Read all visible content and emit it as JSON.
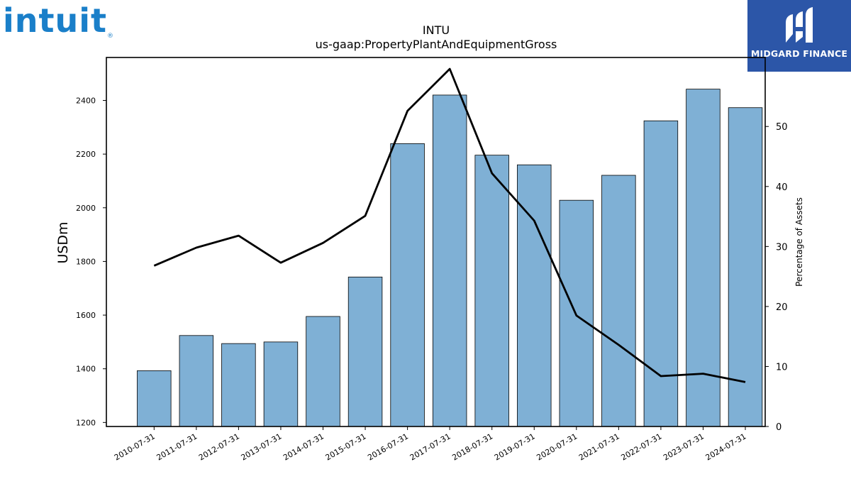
{
  "logos": {
    "left_brand": "intuit",
    "left_brand_color": "#1a7fc9",
    "right_brand": "MIDGARD FINANCE",
    "right_brand_color": "#2c56a8"
  },
  "chart_data": {
    "type": "bar",
    "title": "INTU",
    "subtitle": "us-gaap:PropertyPlantAndEquipmentGross",
    "ylabel": "USDm",
    "y2label": "Percentage of Assets",
    "categories": [
      "2010-07-31",
      "2011-07-31",
      "2012-07-31",
      "2013-07-31",
      "2014-07-31",
      "2015-07-31",
      "2016-07-31",
      "2017-07-31",
      "2018-07-31",
      "2019-07-31",
      "2020-07-31",
      "2021-07-31",
      "2022-07-31",
      "2023-07-31",
      "2024-07-31"
    ],
    "series": [
      {
        "type": "bar",
        "axis": "left",
        "values": [
          1393,
          1524,
          1494,
          1500,
          1595,
          1742,
          2239,
          2420,
          2196,
          2160,
          2028,
          2121,
          2324,
          2442,
          2373
        ],
        "color": "#7fb0d5"
      },
      {
        "type": "line",
        "axis": "right",
        "values": [
          26.8,
          29.8,
          31.8,
          27.3,
          30.6,
          35.1,
          52.6,
          59.6,
          42.2,
          34.3,
          18.5,
          13.6,
          8.4,
          8.8,
          7.4
        ],
        "color": "#000000"
      }
    ],
    "ylim": [
      1185,
      2560
    ],
    "y2lim": [
      0,
      61.5
    ],
    "yticks": [
      1200,
      1400,
      1600,
      1800,
      2000,
      2200,
      2400
    ],
    "y2ticks": [
      0,
      10,
      20,
      30,
      40,
      50
    ],
    "grid": false,
    "legend": "none"
  }
}
